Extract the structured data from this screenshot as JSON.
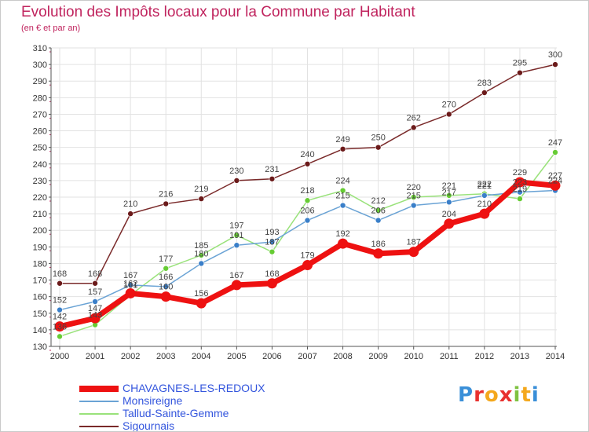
{
  "title": "Evolution des Impôts locaux pour la Commune par Habitant",
  "subtitle": "(en € et par an)",
  "brand": "Proxiti",
  "chart_data": {
    "type": "line",
    "title": "Evolution des Impôts locaux pour la Commune par Habitant",
    "subtitle": "(en € et par an)",
    "xlabel": "",
    "ylabel": "",
    "x": [
      "2000",
      "2001",
      "2002",
      "2003",
      "2004",
      "2005",
      "2006",
      "2007",
      "2008",
      "2009",
      "2010",
      "2011",
      "2012",
      "2013",
      "2014"
    ],
    "ylim": [
      130,
      310
    ],
    "yticks": [
      130,
      140,
      150,
      160,
      170,
      180,
      190,
      200,
      210,
      220,
      230,
      240,
      250,
      260,
      270,
      280,
      290,
      300,
      310
    ],
    "grid": true,
    "legend_position": "bottom-left",
    "series": [
      {
        "name": "CHAVAGNES-LES-REDOUX",
        "color": "#ee1111",
        "marker_color": "#ee1111",
        "values": [
          142,
          147,
          162,
          160,
          156,
          167,
          168,
          179,
          192,
          186,
          187,
          204,
          210,
          229,
          227
        ]
      },
      {
        "name": "Monsireigne",
        "color": "#6aa3d5",
        "marker_color": "#3a7fc9",
        "values": [
          152,
          157,
          167,
          166,
          180,
          191,
          193,
          206,
          215,
          206,
          215,
          217,
          221,
          223,
          224
        ]
      },
      {
        "name": "Tallud-Sainte-Gemme",
        "color": "#99e27a",
        "marker_color": "#66cc33",
        "values": [
          136,
          143,
          161,
          177,
          185,
          197,
          187,
          218,
          224,
          212,
          220,
          221,
          222,
          219,
          247
        ]
      },
      {
        "name": "Sigournais",
        "color": "#7a2a2a",
        "marker_color": "#6b1a1a",
        "values": [
          168,
          168,
          210,
          216,
          219,
          230,
          231,
          240,
          249,
          250,
          262,
          270,
          283,
          295,
          300
        ]
      }
    ],
    "value_labels": [
      {
        "series": 3,
        "x": "2000",
        "text": "168"
      },
      {
        "series": 3,
        "x": "2001",
        "text": "168"
      },
      {
        "series": 3,
        "x": "2002",
        "text": "210"
      },
      {
        "series": 3,
        "x": "2003",
        "text": "216"
      },
      {
        "series": 3,
        "x": "2004",
        "text": "219"
      },
      {
        "series": 3,
        "x": "2005",
        "text": "230"
      },
      {
        "series": 3,
        "x": "2006",
        "text": "231"
      },
      {
        "series": 3,
        "x": "2007",
        "text": "240"
      },
      {
        "series": 3,
        "x": "2008",
        "text": "249"
      },
      {
        "series": 3,
        "x": "2009",
        "text": "250"
      },
      {
        "series": 3,
        "x": "2010",
        "text": "262"
      },
      {
        "series": 3,
        "x": "2011",
        "text": "270"
      },
      {
        "series": 3,
        "x": "2012",
        "text": "283"
      },
      {
        "series": 3,
        "x": "2013",
        "text": "295"
      },
      {
        "series": 3,
        "x": "2014",
        "text": "300"
      },
      {
        "series": 1,
        "x": "2000",
        "text": "152"
      },
      {
        "series": 1,
        "x": "2001",
        "text": "157"
      },
      {
        "series": 1,
        "x": "2002",
        "text": "167"
      },
      {
        "series": 1,
        "x": "2003",
        "text": "166"
      },
      {
        "series": 1,
        "x": "2004",
        "text": "180"
      },
      {
        "series": 1,
        "x": "2005",
        "text": "191"
      },
      {
        "series": 1,
        "x": "2006",
        "text": "193"
      },
      {
        "series": 1,
        "x": "2007",
        "text": "206"
      },
      {
        "series": 1,
        "x": "2008",
        "text": "215"
      },
      {
        "series": 1,
        "x": "2009",
        "text": "206"
      },
      {
        "series": 1,
        "x": "2010",
        "text": "215"
      },
      {
        "series": 1,
        "x": "2011",
        "text": "217"
      },
      {
        "series": 1,
        "x": "2012",
        "text": "221"
      },
      {
        "series": 1,
        "x": "2013",
        "text": "223"
      },
      {
        "series": 1,
        "x": "2014",
        "text": "224"
      },
      {
        "series": 2,
        "x": "2000",
        "text": "136"
      },
      {
        "series": 2,
        "x": "2001",
        "text": "143"
      },
      {
        "series": 2,
        "x": "2002",
        "text": "161"
      },
      {
        "series": 2,
        "x": "2003",
        "text": "177"
      },
      {
        "series": 2,
        "x": "2004",
        "text": "185"
      },
      {
        "series": 2,
        "x": "2005",
        "text": "197"
      },
      {
        "series": 2,
        "x": "2006",
        "text": "187"
      },
      {
        "series": 2,
        "x": "2007",
        "text": "218"
      },
      {
        "series": 2,
        "x": "2008",
        "text": "224"
      },
      {
        "series": 2,
        "x": "2009",
        "text": "212"
      },
      {
        "series": 2,
        "x": "2010",
        "text": "220"
      },
      {
        "series": 2,
        "x": "2011",
        "text": "221"
      },
      {
        "series": 2,
        "x": "2012",
        "text": "222"
      },
      {
        "series": 2,
        "x": "2013",
        "text": "219"
      },
      {
        "series": 2,
        "x": "2014",
        "text": "247"
      },
      {
        "series": 0,
        "x": "2000",
        "text": "142"
      },
      {
        "series": 0,
        "x": "2001",
        "text": "147"
      },
      {
        "series": 0,
        "x": "2002",
        "text": "162"
      },
      {
        "series": 0,
        "x": "2003",
        "text": "160"
      },
      {
        "series": 0,
        "x": "2004",
        "text": "156"
      },
      {
        "series": 0,
        "x": "2005",
        "text": "167"
      },
      {
        "series": 0,
        "x": "2006",
        "text": "168"
      },
      {
        "series": 0,
        "x": "2007",
        "text": "179"
      },
      {
        "series": 0,
        "x": "2008",
        "text": "192"
      },
      {
        "series": 0,
        "x": "2009",
        "text": "186"
      },
      {
        "series": 0,
        "x": "2010",
        "text": "187"
      },
      {
        "series": 0,
        "x": "2011",
        "text": "204"
      },
      {
        "series": 0,
        "x": "2012",
        "text": "210"
      },
      {
        "series": 0,
        "x": "2013",
        "text": "229"
      },
      {
        "series": 0,
        "x": "2014",
        "text": "227"
      }
    ]
  }
}
